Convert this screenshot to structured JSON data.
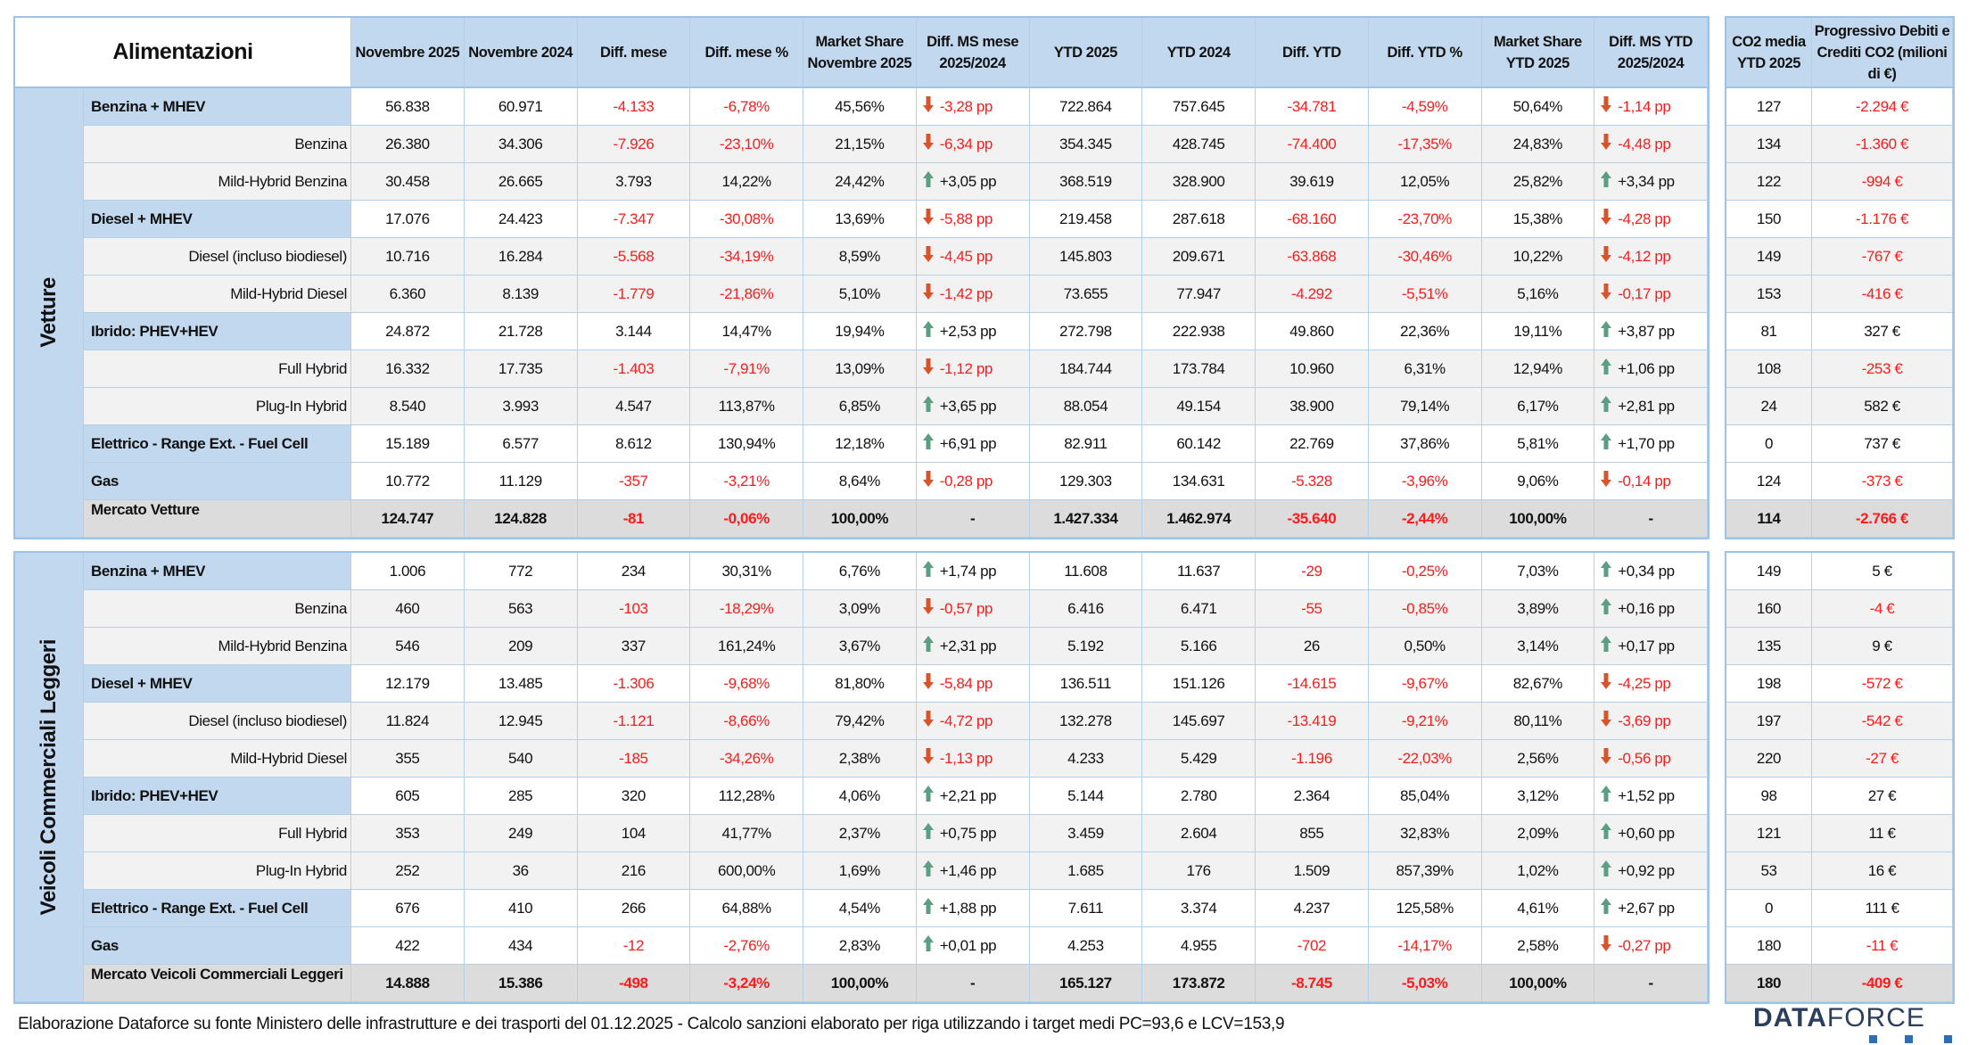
{
  "header": {
    "title": "Alimentazioni",
    "columns": [
      "Novembre 2025",
      "Novembre 2024",
      "Diff. mese",
      "Diff. mese %",
      "Market Share Novembre 2025",
      "Diff. MS mese 2025/2024",
      "YTD 2025",
      "YTD 2024",
      "Diff. YTD",
      "Diff. YTD %",
      "Market Share YTD 2025",
      "Diff. MS YTD 2025/2024"
    ],
    "co2_columns": [
      "CO2 media YTD 2025",
      "Progressivo Debiti e Crediti CO2 (milioni di €)"
    ]
  },
  "colors": {
    "header_bg": "#c2d8ee",
    "negative": "#ff1a1a",
    "arrow_down": "#d9532a",
    "arrow_up": "#5a9e83",
    "total_bg": "#dcdcdc",
    "subrow_bg": "#f2f2f2"
  },
  "sections": [
    {
      "category": "Vetture",
      "rows": [
        {
          "type": "g",
          "label": "Benzina + MHEV",
          "values": [
            "56.838",
            "60.971",
            "-4.133",
            "-6,78%",
            "45,56%",
            "-3,28 pp",
            "722.864",
            "757.645",
            "-34.781",
            "-4,59%",
            "50,64%",
            "-1,14 pp"
          ],
          "co2": [
            "127",
            "-2.294 €"
          ]
        },
        {
          "type": "s",
          "label": "Benzina",
          "values": [
            "26.380",
            "34.306",
            "-7.926",
            "-23,10%",
            "21,15%",
            "-6,34 pp",
            "354.345",
            "428.745",
            "-74.400",
            "-17,35%",
            "24,83%",
            "-4,48 pp"
          ],
          "co2": [
            "134",
            "-1.360 €"
          ]
        },
        {
          "type": "s",
          "label": "Mild-Hybrid Benzina",
          "values": [
            "30.458",
            "26.665",
            "3.793",
            "14,22%",
            "24,42%",
            "+3,05 pp",
            "368.519",
            "328.900",
            "39.619",
            "12,05%",
            "25,82%",
            "+3,34 pp"
          ],
          "co2": [
            "122",
            "-994 €"
          ]
        },
        {
          "type": "g",
          "label": "Diesel + MHEV",
          "values": [
            "17.076",
            "24.423",
            "-7.347",
            "-30,08%",
            "13,69%",
            "-5,88 pp",
            "219.458",
            "287.618",
            "-68.160",
            "-23,70%",
            "15,38%",
            "-4,28 pp"
          ],
          "co2": [
            "150",
            "-1.176 €"
          ]
        },
        {
          "type": "s",
          "label": "Diesel (incluso biodiesel)",
          "values": [
            "10.716",
            "16.284",
            "-5.568",
            "-34,19%",
            "8,59%",
            "-4,45 pp",
            "145.803",
            "209.671",
            "-63.868",
            "-30,46%",
            "10,22%",
            "-4,12 pp"
          ],
          "co2": [
            "149",
            "-767 €"
          ]
        },
        {
          "type": "s",
          "label": "Mild-Hybrid Diesel",
          "values": [
            "6.360",
            "8.139",
            "-1.779",
            "-21,86%",
            "5,10%",
            "-1,42 pp",
            "73.655",
            "77.947",
            "-4.292",
            "-5,51%",
            "5,16%",
            "-0,17 pp"
          ],
          "co2": [
            "153",
            "-416 €"
          ]
        },
        {
          "type": "g",
          "label": "Ibrido: PHEV+HEV",
          "values": [
            "24.872",
            "21.728",
            "3.144",
            "14,47%",
            "19,94%",
            "+2,53 pp",
            "272.798",
            "222.938",
            "49.860",
            "22,36%",
            "19,11%",
            "+3,87 pp"
          ],
          "co2": [
            "81",
            "327 €"
          ]
        },
        {
          "type": "s",
          "label": "Full Hybrid",
          "values": [
            "16.332",
            "17.735",
            "-1.403",
            "-7,91%",
            "13,09%",
            "-1,12 pp",
            "184.744",
            "173.784",
            "10.960",
            "6,31%",
            "12,94%",
            "+1,06 pp"
          ],
          "co2": [
            "108",
            "-253 €"
          ]
        },
        {
          "type": "s",
          "label": "Plug-In Hybrid",
          "values": [
            "8.540",
            "3.993",
            "4.547",
            "113,87%",
            "6,85%",
            "+3,65 pp",
            "88.054",
            "49.154",
            "38.900",
            "79,14%",
            "6,17%",
            "+2,81 pp"
          ],
          "co2": [
            "24",
            "582 €"
          ]
        },
        {
          "type": "g",
          "label": "Elettrico - Range Ext. - Fuel Cell",
          "values": [
            "15.189",
            "6.577",
            "8.612",
            "130,94%",
            "12,18%",
            "+6,91 pp",
            "82.911",
            "60.142",
            "22.769",
            "37,86%",
            "5,81%",
            "+1,70 pp"
          ],
          "co2": [
            "0",
            "737 €"
          ]
        },
        {
          "type": "g",
          "label": "Gas",
          "values": [
            "10.772",
            "11.129",
            "-357",
            "-3,21%",
            "8,64%",
            "-0,28 pp",
            "129.303",
            "134.631",
            "-5.328",
            "-3,96%",
            "9,06%",
            "-0,14 pp"
          ],
          "co2": [
            "124",
            "-373 €"
          ]
        },
        {
          "type": "t",
          "label": "Mercato Vetture",
          "values": [
            "124.747",
            "124.828",
            "-81",
            "-0,06%",
            "100,00%",
            "-",
            "1.427.334",
            "1.462.974",
            "-35.640",
            "-2,44%",
            "100,00%",
            "-"
          ],
          "co2": [
            "114",
            "-2.766 €"
          ]
        }
      ]
    },
    {
      "category": "Veicoli Commerciali Leggeri",
      "rows": [
        {
          "type": "g",
          "label": "Benzina + MHEV",
          "values": [
            "1.006",
            "772",
            "234",
            "30,31%",
            "6,76%",
            "+1,74 pp",
            "11.608",
            "11.637",
            "-29",
            "-0,25%",
            "7,03%",
            "+0,34 pp"
          ],
          "co2": [
            "149",
            "5 €"
          ]
        },
        {
          "type": "s",
          "label": "Benzina",
          "values": [
            "460",
            "563",
            "-103",
            "-18,29%",
            "3,09%",
            "-0,57 pp",
            "6.416",
            "6.471",
            "-55",
            "-0,85%",
            "3,89%",
            "+0,16 pp"
          ],
          "co2": [
            "160",
            "-4 €"
          ]
        },
        {
          "type": "s",
          "label": "Mild-Hybrid Benzina",
          "values": [
            "546",
            "209",
            "337",
            "161,24%",
            "3,67%",
            "+2,31 pp",
            "5.192",
            "5.166",
            "26",
            "0,50%",
            "3,14%",
            "+0,17 pp"
          ],
          "co2": [
            "135",
            "9 €"
          ]
        },
        {
          "type": "g",
          "label": "Diesel + MHEV",
          "values": [
            "12.179",
            "13.485",
            "-1.306",
            "-9,68%",
            "81,80%",
            "-5,84 pp",
            "136.511",
            "151.126",
            "-14.615",
            "-9,67%",
            "82,67%",
            "-4,25 pp"
          ],
          "co2": [
            "198",
            "-572 €"
          ]
        },
        {
          "type": "s",
          "label": "Diesel (incluso biodiesel)",
          "values": [
            "11.824",
            "12.945",
            "-1.121",
            "-8,66%",
            "79,42%",
            "-4,72 pp",
            "132.278",
            "145.697",
            "-13.419",
            "-9,21%",
            "80,11%",
            "-3,69 pp"
          ],
          "co2": [
            "197",
            "-542 €"
          ]
        },
        {
          "type": "s",
          "label": "Mild-Hybrid Diesel",
          "values": [
            "355",
            "540",
            "-185",
            "-34,26%",
            "2,38%",
            "-1,13 pp",
            "4.233",
            "5.429",
            "-1.196",
            "-22,03%",
            "2,56%",
            "-0,56 pp"
          ],
          "co2": [
            "220",
            "-27 €"
          ]
        },
        {
          "type": "g",
          "label": "Ibrido: PHEV+HEV",
          "values": [
            "605",
            "285",
            "320",
            "112,28%",
            "4,06%",
            "+2,21 pp",
            "5.144",
            "2.780",
            "2.364",
            "85,04%",
            "3,12%",
            "+1,52 pp"
          ],
          "co2": [
            "98",
            "27 €"
          ]
        },
        {
          "type": "s",
          "label": "Full Hybrid",
          "values": [
            "353",
            "249",
            "104",
            "41,77%",
            "2,37%",
            "+0,75 pp",
            "3.459",
            "2.604",
            "855",
            "32,83%",
            "2,09%",
            "+0,60 pp"
          ],
          "co2": [
            "121",
            "11 €"
          ]
        },
        {
          "type": "s",
          "label": "Plug-In Hybrid",
          "values": [
            "252",
            "36",
            "216",
            "600,00%",
            "1,69%",
            "+1,46 pp",
            "1.685",
            "176",
            "1.509",
            "857,39%",
            "1,02%",
            "+0,92 pp"
          ],
          "co2": [
            "53",
            "16 €"
          ]
        },
        {
          "type": "g",
          "label": "Elettrico - Range Ext. - Fuel Cell",
          "values": [
            "676",
            "410",
            "266",
            "64,88%",
            "4,54%",
            "+1,88 pp",
            "7.611",
            "3.374",
            "4.237",
            "125,58%",
            "4,61%",
            "+2,67 pp"
          ],
          "co2": [
            "0",
            "111 €"
          ]
        },
        {
          "type": "g",
          "label": "Gas",
          "values": [
            "422",
            "434",
            "-12",
            "-2,76%",
            "2,83%",
            "+0,01 pp",
            "4.253",
            "4.955",
            "-702",
            "-14,17%",
            "2,58%",
            "-0,27 pp"
          ],
          "co2": [
            "180",
            "-11 €"
          ]
        },
        {
          "type": "t",
          "label": "Mercato Veicoli Commerciali Leggeri",
          "values": [
            "14.888",
            "15.386",
            "-498",
            "-3,24%",
            "100,00%",
            "-",
            "165.127",
            "173.872",
            "-8.745",
            "-5,03%",
            "100,00%",
            "-"
          ],
          "co2": [
            "180",
            "-409 €"
          ]
        }
      ]
    }
  ],
  "footer": "Elaborazione Dataforce su fonte Ministero delle infrastrutture e dei trasporti del 01.12.2025 - Calcolo sanzioni elaborato per riga utilizzando i target medi PC=93,6 e LCV=153,9",
  "logo": {
    "bold": "DATA",
    "light": "FORCE"
  }
}
